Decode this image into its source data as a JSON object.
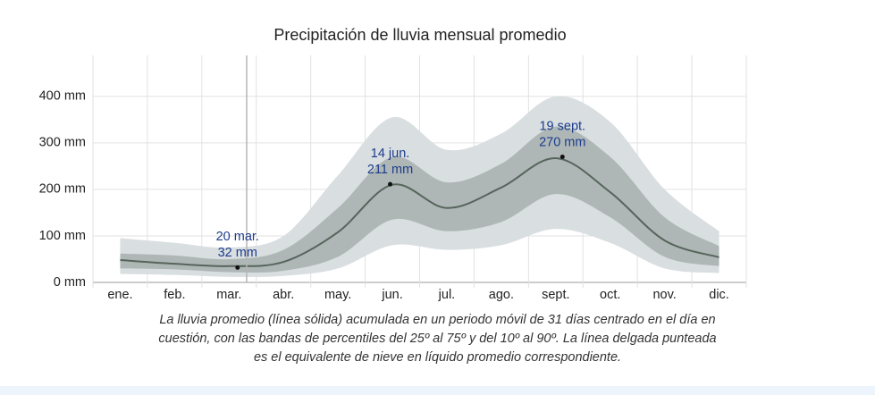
{
  "chart_data": {
    "type": "band_line",
    "title": "Precipitación de lluvia mensual promedio",
    "categories": [
      "ene.",
      "feb.",
      "mar.",
      "abr.",
      "may.",
      "jun.",
      "jul.",
      "ago.",
      "sept.",
      "oct.",
      "nov.",
      "dic."
    ],
    "line": {
      "color": "#56655b",
      "values": [
        48,
        40,
        35,
        44,
        108,
        210,
        160,
        204,
        267,
        194,
        90,
        54
      ]
    },
    "band_inner": {
      "color": "#aeb7b6",
      "low": [
        30,
        28,
        22,
        25,
        55,
        135,
        110,
        130,
        190,
        140,
        55,
        35
      ],
      "high": [
        62,
        58,
        50,
        70,
        160,
        270,
        215,
        255,
        335,
        270,
        140,
        78
      ]
    },
    "band_outer": {
      "color": "#d9dee0",
      "low": [
        18,
        16,
        12,
        14,
        30,
        80,
        70,
        80,
        115,
        85,
        30,
        20
      ],
      "high": [
        95,
        85,
        75,
        100,
        230,
        355,
        285,
        320,
        400,
        345,
        200,
        110
      ]
    },
    "ylim": [
      0,
      440
    ],
    "yticks": [
      {
        "value": 0,
        "label": "0 mm"
      },
      {
        "value": 100,
        "label": "100 mm"
      },
      {
        "value": 200,
        "label": "200 mm"
      },
      {
        "value": 300,
        "label": "300 mm"
      },
      {
        "value": 400,
        "label": "400 mm"
      }
    ],
    "grid": true,
    "annotations": [
      {
        "date": "20 mar.",
        "category": "mar.",
        "day": 20,
        "value": 32,
        "value_label": "32 mm"
      },
      {
        "date": "14 jun.",
        "category": "jun.",
        "day": 14,
        "value": 211,
        "value_label": "211 mm"
      },
      {
        "date": "19 sept.",
        "category": "sept.",
        "day": 19,
        "value": 270,
        "value_label": "270 mm"
      }
    ],
    "caption_lines": [
      "La lluvia promedio (línea sólida) acumulada en un periodo móvil de 31 días centrado en el día en",
      "cuestión, con las bandas de percentiles del 25º al 75º y del 10º al 90º. La línea delgada punteada",
      "es el equivalente de nieve en líquido promedio correspondiente."
    ]
  }
}
